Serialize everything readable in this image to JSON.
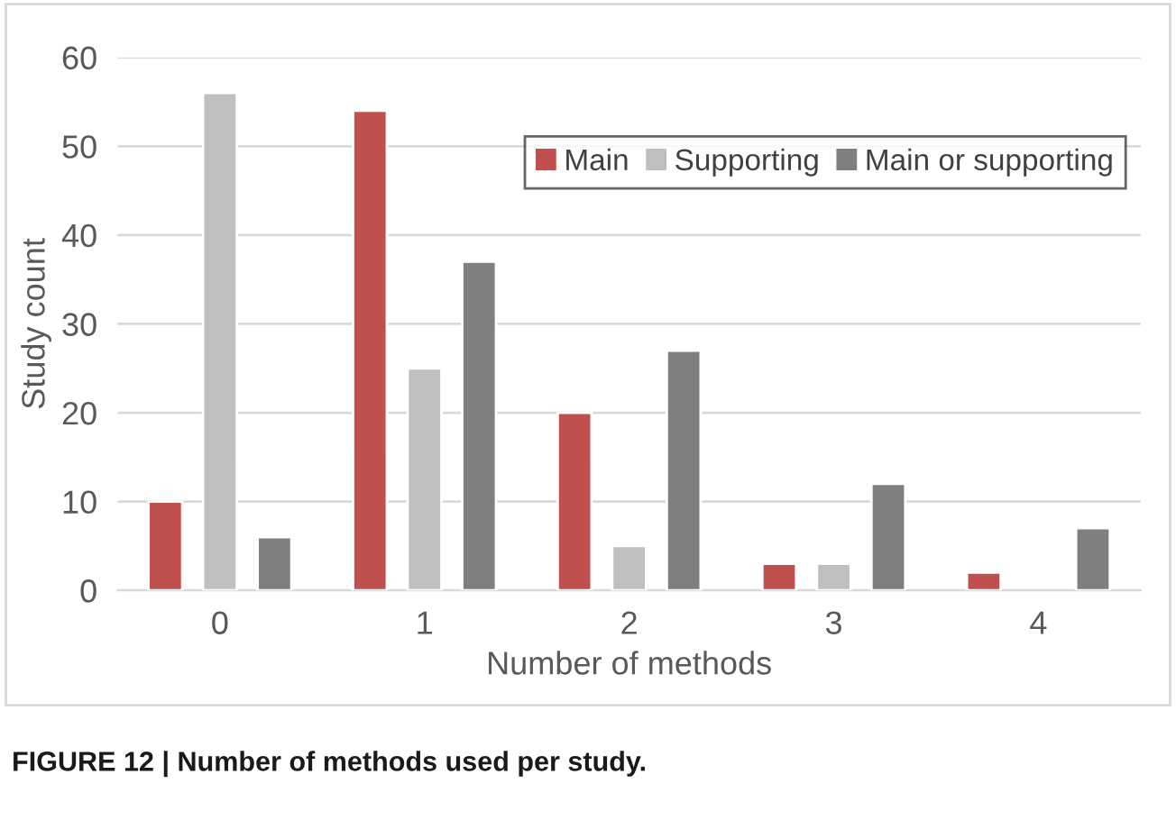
{
  "chart_data": {
    "type": "bar",
    "xlabel": "Number of methods",
    "ylabel": "Study count",
    "categories": [
      "0",
      "1",
      "2",
      "3",
      "4"
    ],
    "series": [
      {
        "name": "Main",
        "color": "#c0504d",
        "values": [
          10,
          54,
          20,
          3,
          2
        ]
      },
      {
        "name": "Supporting",
        "color": "#bfbfbf",
        "values": [
          56,
          25,
          5,
          3,
          null
        ]
      },
      {
        "name": "Main or supporting",
        "color": "#7f7f7f",
        "values": [
          6,
          37,
          27,
          12,
          7
        ]
      }
    ],
    "ylim": [
      0,
      60
    ],
    "yticks": [
      0,
      10,
      20,
      30,
      40,
      50,
      60
    ],
    "grid": "y",
    "legend": "top right",
    "annotations": [
      "FIGURE 12 | Number of methods used per study."
    ]
  }
}
